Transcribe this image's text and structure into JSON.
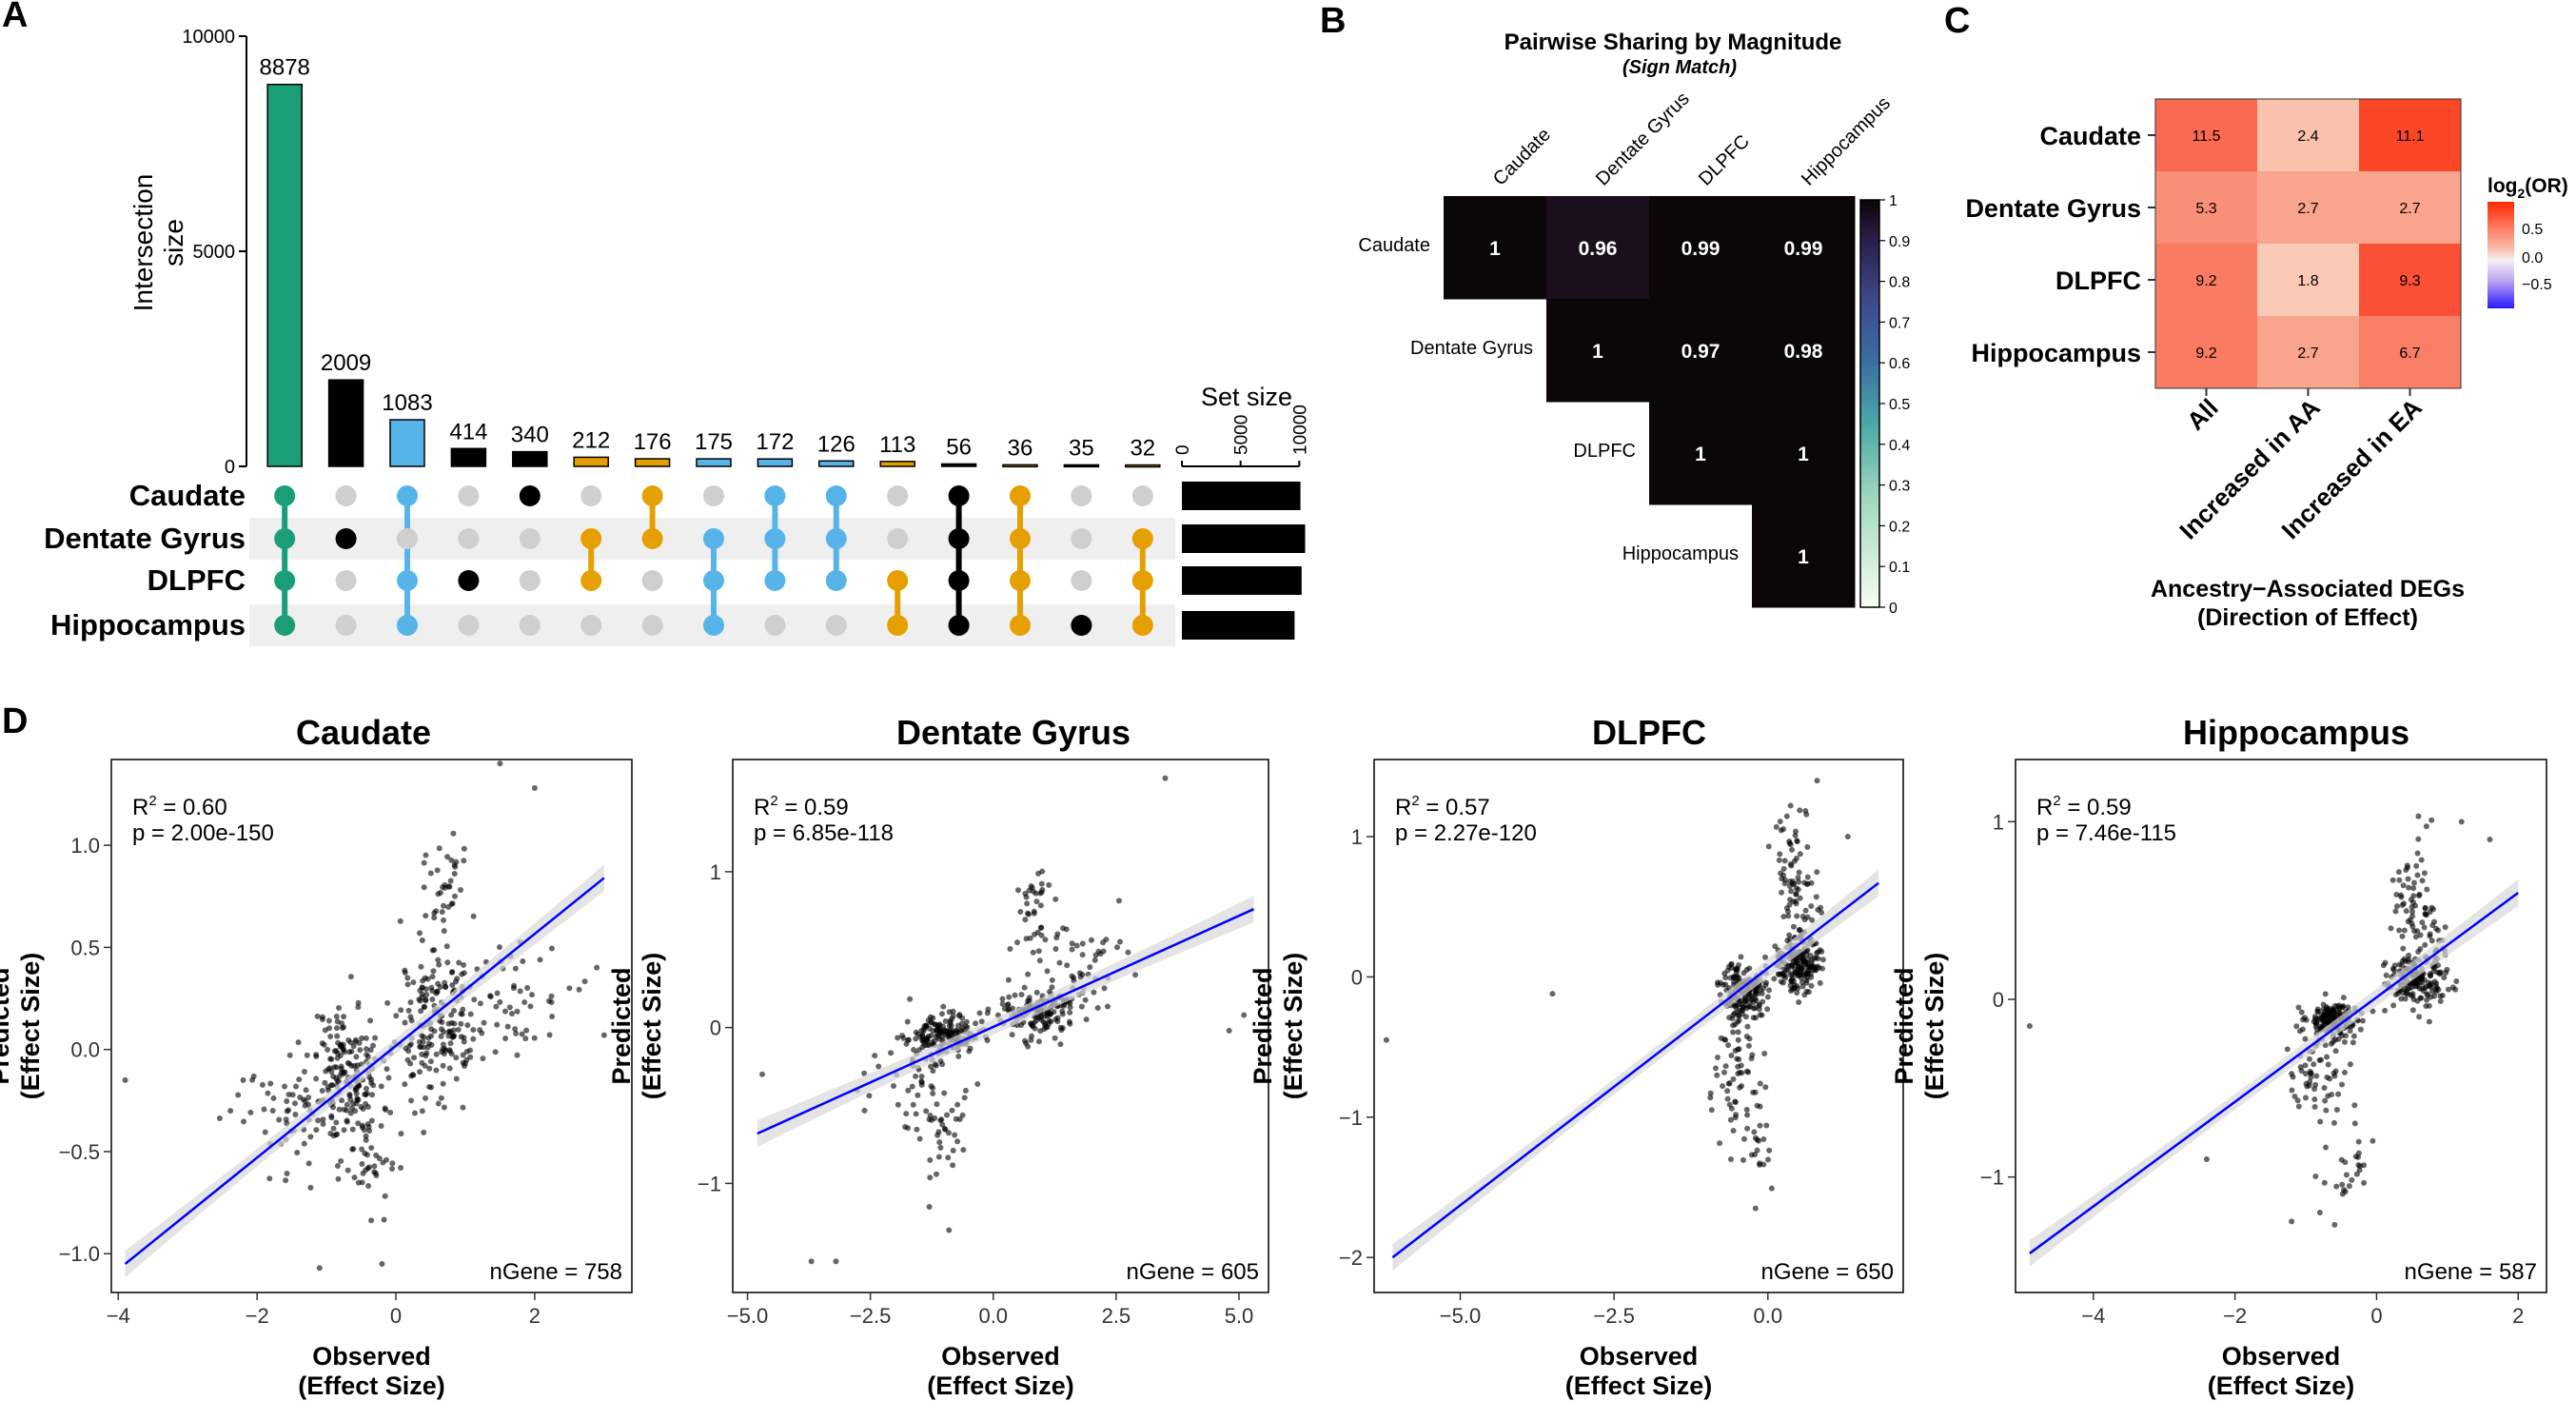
{
  "panel_labels": {
    "a": "A",
    "b": "B",
    "c": "C",
    "d": "D"
  },
  "colors": {
    "green": "#1a9e77",
    "blue": "#56b4e9",
    "orange": "#e69f00",
    "black": "#000000",
    "dot_off": "#cfcfcf",
    "stripe": "#efefef",
    "fit_line": "#0000ff",
    "ribbon": "#d9d9d9"
  },
  "chart_data": [
    {
      "type": "bar",
      "id": "upset",
      "ylabel": "Intersection size",
      "ylim": [
        0,
        10000
      ],
      "yticks": [
        0,
        5000,
        10000
      ],
      "sets": [
        "Caudate",
        "Dentate Gyrus",
        "DLPFC",
        "Hippocampus"
      ],
      "intersections": [
        {
          "value": 8878,
          "members": [
            1,
            1,
            1,
            1
          ],
          "color": "green"
        },
        {
          "value": 2009,
          "members": [
            0,
            1,
            0,
            0
          ],
          "color": "black"
        },
        {
          "value": 1083,
          "members": [
            1,
            0,
            1,
            1
          ],
          "color": "blue"
        },
        {
          "value": 414,
          "members": [
            0,
            0,
            1,
            0
          ],
          "color": "black"
        },
        {
          "value": 340,
          "members": [
            1,
            0,
            0,
            0
          ],
          "color": "black"
        },
        {
          "value": 212,
          "members": [
            0,
            1,
            1,
            0
          ],
          "color": "orange"
        },
        {
          "value": 176,
          "members": [
            1,
            1,
            0,
            0
          ],
          "color": "orange"
        },
        {
          "value": 175,
          "members": [
            0,
            1,
            1,
            1
          ],
          "color": "blue"
        },
        {
          "value": 172,
          "members": [
            1,
            1,
            1,
            0
          ],
          "color": "blue"
        },
        {
          "value": 126,
          "members": [
            1,
            1,
            1,
            0
          ],
          "color": "blue"
        },
        {
          "value": 113,
          "members": [
            0,
            0,
            1,
            1
          ],
          "color": "orange"
        },
        {
          "value": 56,
          "members": [
            1,
            1,
            1,
            1
          ],
          "color": "black"
        },
        {
          "value": 36,
          "members": [
            1,
            1,
            1,
            1
          ],
          "color": "orange"
        },
        {
          "value": 35,
          "members": [
            0,
            0,
            0,
            1
          ],
          "color": "black"
        },
        {
          "value": 32,
          "members": [
            0,
            1,
            1,
            1
          ],
          "color": "orange"
        }
      ],
      "set_size": {
        "title": "Set size",
        "ticks": [
          0,
          5000,
          10000
        ],
        "xlim": [
          0,
          12000
        ],
        "values": [
          10100,
          10500,
          10200,
          9600
        ]
      }
    },
    {
      "type": "heatmap",
      "id": "pairwise",
      "title": "Pairwise Sharing by Magnitude",
      "subtitle": "(Sign Match)",
      "labels": [
        "Caudate",
        "Dentate Gyrus",
        "DLPFC",
        "Hippocampus"
      ],
      "cells": [
        {
          "r": 0,
          "c": 0,
          "v": "1"
        },
        {
          "r": 0,
          "c": 1,
          "v": "0.96"
        },
        {
          "r": 0,
          "c": 2,
          "v": "0.99"
        },
        {
          "r": 0,
          "c": 3,
          "v": "0.99"
        },
        {
          "r": 1,
          "c": 1,
          "v": "1"
        },
        {
          "r": 1,
          "c": 2,
          "v": "0.97"
        },
        {
          "r": 1,
          "c": 3,
          "v": "0.98"
        },
        {
          "r": 2,
          "c": 2,
          "v": "1"
        },
        {
          "r": 2,
          "c": 3,
          "v": "1"
        },
        {
          "r": 3,
          "c": 3,
          "v": "1"
        }
      ],
      "colorbar_ticks": [
        "0",
        "0.1",
        "0.2",
        "0.3",
        "0.4",
        "0.5",
        "0.6",
        "0.7",
        "0.8",
        "0.9",
        "1"
      ]
    },
    {
      "type": "heatmap",
      "id": "enrichment",
      "rows": [
        "Caudate",
        "Dentate Gyrus",
        "DLPFC",
        "Hippocampus"
      ],
      "columns": [
        "All",
        "Increased in AA",
        "Increased in EA"
      ],
      "values": [
        [
          11.5,
          2.4,
          11.1
        ],
        [
          5.3,
          2.7,
          2.7
        ],
        [
          9.2,
          1.8,
          9.3
        ],
        [
          9.2,
          2.7,
          6.7
        ]
      ],
      "colors": [
        [
          "#f96a52",
          "#f9c2ac",
          "#fb4726"
        ],
        [
          "#f98f78",
          "#f9a48c",
          "#f9a48c"
        ],
        [
          "#f97b62",
          "#f9c9b5",
          "#f95036"
        ],
        [
          "#f97b62",
          "#f9a48c",
          "#f97e66"
        ]
      ],
      "xlabel": "Ancestry−Associated DEGs",
      "xlabel2": "(Direction of Effect)",
      "legend_title": "log",
      "legend_sub": "2",
      "legend_title_tail": "(OR)",
      "legend_ticks": [
        "0.5",
        "0.0",
        "−0.5"
      ]
    },
    {
      "type": "scatter",
      "id": "caudate",
      "title": "Caudate",
      "r2_label": "R",
      "r2_sup": "2",
      "r2_value": " = 0.60",
      "p_text": "p = 2.00e-150",
      "n_text": "nGene = 758",
      "xlim": [
        -4.1,
        3.4
      ],
      "ylim": [
        -1.19,
        1.42
      ],
      "xticks": [
        -4,
        -2,
        0,
        2
      ],
      "xtick_labels": [
        "−4",
        "−2",
        "0",
        "2"
      ],
      "yticks": [
        -1.0,
        -0.5,
        0.0,
        0.5,
        1.0
      ],
      "ytick_labels": [
        "−1.0",
        "−0.5",
        "0.0",
        "0.5",
        "1.0"
      ],
      "xlabel": "Observed",
      "xlabel2": "(Effect Size)",
      "ylabel": "Predicted",
      "ylabel2": "(Effect Size)",
      "fit": [
        [
          -3.9,
          -1.05
        ],
        [
          3.0,
          0.84
        ]
      ],
      "clusters": [
        [
          -0.7,
          -0.12,
          0.5,
          0.35,
          180
        ],
        [
          0.6,
          0.12,
          0.6,
          0.35,
          180
        ],
        [
          -1.6,
          -0.3,
          0.9,
          0.3,
          60
        ],
        [
          1.5,
          0.3,
          1.0,
          0.3,
          60
        ],
        [
          -0.4,
          -0.55,
          0.4,
          0.25,
          40
        ],
        [
          0.7,
          0.8,
          0.3,
          0.3,
          40
        ]
      ],
      "outliers": [
        [
          -3.9,
          -0.15
        ],
        [
          -2.2,
          -0.15
        ],
        [
          3.0,
          0.07
        ],
        [
          2.0,
          1.28
        ],
        [
          1.5,
          1.4
        ],
        [
          -0.2,
          -1.05
        ],
        [
          -1.1,
          -1.07
        ],
        [
          2.5,
          0.3
        ]
      ],
      "seed": 11
    },
    {
      "type": "scatter",
      "id": "dentate",
      "title": "Dentate Gyrus",
      "r2_label": "R",
      "r2_sup": "2",
      "r2_value": " = 0.59",
      "p_text": "p = 6.85e-118",
      "n_text": "nGene = 605",
      "xlim": [
        -5.3,
        5.6
      ],
      "ylim": [
        -1.7,
        1.72
      ],
      "xticks": [
        -5.0,
        -2.5,
        0.0,
        2.5,
        5.0
      ],
      "xtick_labels": [
        "−5.0",
        "−2.5",
        "0.0",
        "2.5",
        "5.0"
      ],
      "yticks": [
        -1,
        0,
        1
      ],
      "ytick_labels": [
        "−1",
        "0",
        "1"
      ],
      "xlabel": "Observed",
      "xlabel2": "(Effect Size)",
      "ylabel": "Predicted",
      "ylabel2": "(Effect Size)",
      "fit": [
        [
          -4.8,
          -0.68
        ],
        [
          5.3,
          0.76
        ]
      ],
      "clusters": [
        [
          -1.0,
          -0.05,
          0.7,
          0.12,
          150
        ],
        [
          0.9,
          0.1,
          0.8,
          0.15,
          150
        ],
        [
          -1.5,
          -0.3,
          1.0,
          0.35,
          60
        ],
        [
          1.5,
          0.4,
          1.2,
          0.35,
          60
        ],
        [
          -1.0,
          -0.7,
          0.5,
          0.3,
          30
        ],
        [
          0.8,
          0.8,
          0.4,
          0.3,
          30
        ]
      ],
      "outliers": [
        [
          -4.7,
          -0.3
        ],
        [
          -3.7,
          -1.5
        ],
        [
          -3.2,
          -1.5
        ],
        [
          5.1,
          0.08
        ],
        [
          4.8,
          -0.02
        ],
        [
          3.5,
          1.6
        ],
        [
          -0.9,
          -1.3
        ],
        [
          -1.3,
          -1.15
        ]
      ],
      "seed": 23
    },
    {
      "type": "scatter",
      "id": "dlpfc",
      "title": "DLPFC",
      "r2_label": "R",
      "r2_sup": "2",
      "r2_value": " = 0.57",
      "p_text": "p = 2.27e-120",
      "n_text": "nGene = 650",
      "xlim": [
        -6.4,
        2.2
      ],
      "ylim": [
        -2.25,
        1.55
      ],
      "xticks": [
        -5.0,
        -2.5,
        0.0
      ],
      "xtick_labels": [
        "−5.0",
        "−2.5",
        "0.0"
      ],
      "yticks": [
        -2,
        -1,
        0,
        1
      ],
      "ytick_labels": [
        "−2",
        "−1",
        "0",
        "1"
      ],
      "xlabel": "Observed",
      "xlabel2": "(Effect Size)",
      "ylabel": "Predicted",
      "ylabel2": "(Effect Size)",
      "fit": [
        [
          -6.1,
          -2.0
        ],
        [
          1.8,
          0.67
        ]
      ],
      "clusters": [
        [
          -0.4,
          -0.1,
          0.35,
          0.2,
          170
        ],
        [
          0.5,
          0.1,
          0.35,
          0.2,
          170
        ],
        [
          -0.5,
          -0.6,
          0.4,
          0.4,
          60
        ],
        [
          0.5,
          0.6,
          0.4,
          0.4,
          60
        ],
        [
          -0.2,
          -1.2,
          0.3,
          0.3,
          25
        ],
        [
          0.4,
          1.0,
          0.3,
          0.3,
          25
        ]
      ],
      "outliers": [
        [
          -6.2,
          -0.45
        ],
        [
          -3.5,
          -0.12
        ],
        [
          -0.2,
          -1.65
        ],
        [
          1.3,
          1.0
        ],
        [
          0.8,
          1.4
        ],
        [
          -0.6,
          -1.3
        ]
      ],
      "seed": 37
    },
    {
      "type": "scatter",
      "id": "hippocampus",
      "title": "Hippocampus",
      "r2_label": "R",
      "r2_sup": "2",
      "r2_value": " = 0.59",
      "p_text": "p = 7.46e-115",
      "n_text": "nGene = 587",
      "xlim": [
        -5.1,
        2.4
      ],
      "ylim": [
        -1.65,
        1.35
      ],
      "xticks": [
        -4,
        -2,
        0,
        2
      ],
      "xtick_labels": [
        "−4",
        "−2",
        "0",
        "2"
      ],
      "yticks": [
        -1,
        0,
        1
      ],
      "ytick_labels": [
        "−1",
        "0",
        "1"
      ],
      "xlabel": "Observed",
      "xlabel2": "(Effect Size)",
      "ylabel": "Predicted",
      "ylabel2": "(Effect Size)",
      "fit": [
        [
          -4.9,
          -1.43
        ],
        [
          2.0,
          0.6
        ]
      ],
      "clusters": [
        [
          -0.6,
          -0.12,
          0.4,
          0.12,
          160
        ],
        [
          0.6,
          0.1,
          0.5,
          0.15,
          160
        ],
        [
          -0.8,
          -0.45,
          0.5,
          0.3,
          60
        ],
        [
          0.5,
          0.55,
          0.3,
          0.35,
          60
        ],
        [
          -0.4,
          -0.95,
          0.4,
          0.25,
          25
        ],
        [
          0.9,
          0.3,
          0.5,
          0.3,
          25
        ]
      ],
      "outliers": [
        [
          -4.9,
          -0.15
        ],
        [
          -2.4,
          -0.9
        ],
        [
          1.2,
          1.0
        ],
        [
          1.6,
          0.9
        ],
        [
          -1.2,
          -1.25
        ],
        [
          -0.8,
          -1.2
        ]
      ],
      "seed": 53
    }
  ]
}
